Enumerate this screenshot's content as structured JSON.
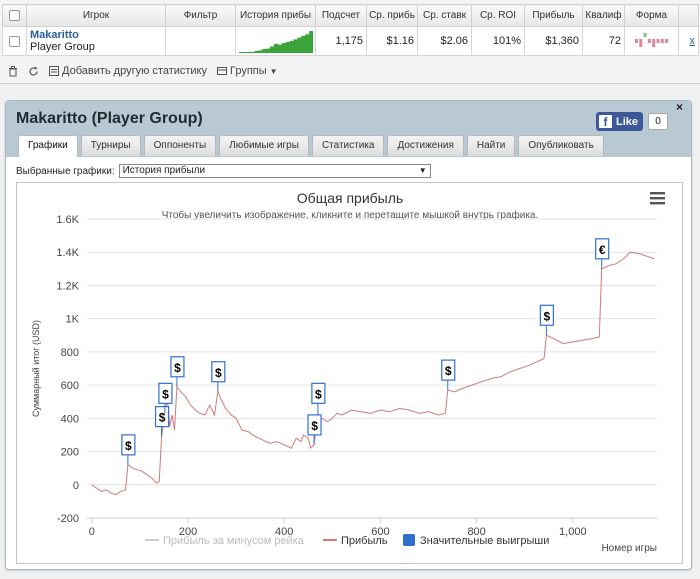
{
  "table": {
    "headers": [
      "Игрок",
      "Фильтр",
      "История прибы",
      "Подсчет",
      "Ср. прибь",
      "Ср. ставк",
      "Ср. ROI",
      "Прибыль",
      "Квалиф",
      "Форма"
    ],
    "row": {
      "player_name": "Makaritto",
      "player_group": "Player Group",
      "filter": "",
      "count": "1,175",
      "avg_profit": "$1.16",
      "avg_stake": "$2.06",
      "avg_roi": "101%",
      "profit": "$1,360",
      "qualification": "72",
      "remove": "x"
    },
    "sparkline_values": [
      0,
      0.02,
      0.05,
      0.04,
      0.1,
      0.12,
      0.18,
      0.2,
      0.3,
      0.42,
      0.38,
      0.45,
      0.5,
      0.55,
      0.62,
      0.7,
      0.78,
      0.85,
      1.0
    ],
    "form_colors": [
      "#d8899a",
      "#d8899a",
      "#7bc77b",
      "#d8899a",
      "#d8899a",
      "#d8899a",
      "#d8899a",
      "#d8899a"
    ]
  },
  "toolbar": {
    "trash_icon": "trash-icon",
    "refresh_icon": "refresh-icon",
    "add_stat_label": "Добавить другую статистику",
    "groups_label": "Группы"
  },
  "group_panel": {
    "title": "Makaritto (Player Group)",
    "fb_like_label": "Like",
    "fb_like_count": "0",
    "close": "×",
    "tabs": [
      "Графики",
      "Турниры",
      "Оппоненты",
      "Любимые игры",
      "Статистика",
      "Достижения",
      "Найти",
      "Опубликовать"
    ],
    "active_tab": "Графики",
    "selected_charts_label": "Выбранные графики:",
    "selected_chart_value": "История прибыли"
  },
  "chart_data": {
    "type": "line",
    "title": "Общая прибыль",
    "subtitle": "Чтобы увеличить изображение, кликните и перетащите мышкой внутрь графика.",
    "ylabel": "Суммарный итог (USD)",
    "xlabel": "Номер игры",
    "ylim": [
      -200,
      1600
    ],
    "xlim": [
      -10,
      1175
    ],
    "y_ticks": [
      "-200",
      "0",
      "200",
      "400",
      "600",
      "800",
      "1K",
      "1.2K",
      "1.4K",
      "1.6K"
    ],
    "y_tick_values": [
      -200,
      0,
      200,
      400,
      600,
      800,
      1000,
      1200,
      1400,
      1600
    ],
    "x_ticks": [
      "0",
      "200",
      "400",
      "600",
      "800",
      "1,000"
    ],
    "x_tick_values": [
      0,
      200,
      400,
      600,
      800,
      1000
    ],
    "legend": [
      "Прибыль за минусом рейка",
      "Прибыль",
      "Значительные выигрыши"
    ],
    "series": [
      {
        "name": "Прибыль",
        "color": "#d07a7a",
        "points": [
          [
            0,
            0
          ],
          [
            10,
            -20
          ],
          [
            20,
            -40
          ],
          [
            30,
            -30
          ],
          [
            40,
            -50
          ],
          [
            50,
            -60
          ],
          [
            60,
            -40
          ],
          [
            70,
            -30
          ],
          [
            75,
            120
          ],
          [
            85,
            100
          ],
          [
            95,
            90
          ],
          [
            105,
            80
          ],
          [
            115,
            60
          ],
          [
            125,
            40
          ],
          [
            135,
            10
          ],
          [
            140,
            20
          ],
          [
            145,
            290
          ],
          [
            148,
            350
          ],
          [
            152,
            430
          ],
          [
            157,
            520
          ],
          [
            162,
            350
          ],
          [
            167,
            420
          ],
          [
            172,
            330
          ],
          [
            177,
            590
          ],
          [
            185,
            560
          ],
          [
            195,
            530
          ],
          [
            205,
            480
          ],
          [
            215,
            450
          ],
          [
            225,
            430
          ],
          [
            235,
            420
          ],
          [
            245,
            480
          ],
          [
            255,
            420
          ],
          [
            262,
            560
          ],
          [
            268,
            520
          ],
          [
            278,
            460
          ],
          [
            290,
            420
          ],
          [
            300,
            400
          ],
          [
            312,
            330
          ],
          [
            325,
            320
          ],
          [
            340,
            290
          ],
          [
            355,
            270
          ],
          [
            370,
            250
          ],
          [
            385,
            260
          ],
          [
            400,
            240
          ],
          [
            415,
            220
          ],
          [
            425,
            280
          ],
          [
            435,
            260
          ],
          [
            440,
            300
          ],
          [
            450,
            280
          ],
          [
            455,
            220
          ],
          [
            462,
            240
          ],
          [
            470,
            430
          ],
          [
            478,
            400
          ],
          [
            490,
            380
          ],
          [
            500,
            400
          ],
          [
            510,
            430
          ],
          [
            520,
            420
          ],
          [
            540,
            450
          ],
          [
            560,
            440
          ],
          [
            580,
            430
          ],
          [
            600,
            450
          ],
          [
            620,
            440
          ],
          [
            640,
            460
          ],
          [
            660,
            450
          ],
          [
            680,
            430
          ],
          [
            700,
            440
          ],
          [
            720,
            420
          ],
          [
            735,
            430
          ],
          [
            740,
            570
          ],
          [
            755,
            560
          ],
          [
            770,
            580
          ],
          [
            790,
            600
          ],
          [
            810,
            620
          ],
          [
            830,
            640
          ],
          [
            850,
            650
          ],
          [
            870,
            680
          ],
          [
            890,
            700
          ],
          [
            910,
            720
          ],
          [
            925,
            740
          ],
          [
            940,
            760
          ],
          [
            945,
            900
          ],
          [
            960,
            880
          ],
          [
            980,
            850
          ],
          [
            1000,
            860
          ],
          [
            1020,
            870
          ],
          [
            1040,
            880
          ],
          [
            1055,
            890
          ],
          [
            1060,
            1300
          ],
          [
            1075,
            1320
          ],
          [
            1090,
            1330
          ],
          [
            1105,
            1360
          ],
          [
            1120,
            1400
          ],
          [
            1140,
            1390
          ],
          [
            1160,
            1370
          ],
          [
            1170,
            1360
          ]
        ]
      }
    ],
    "big_wins": [
      {
        "x": 75,
        "y": 120,
        "label": "$"
      },
      {
        "x": 145,
        "y": 290,
        "label": "$"
      },
      {
        "x": 152,
        "y": 430,
        "label": "$"
      },
      {
        "x": 177,
        "y": 590,
        "label": "$"
      },
      {
        "x": 262,
        "y": 560,
        "label": "$"
      },
      {
        "x": 462,
        "y": 240,
        "label": "$"
      },
      {
        "x": 470,
        "y": 430,
        "label": "$"
      },
      {
        "x": 740,
        "y": 570,
        "label": "$"
      },
      {
        "x": 945,
        "y": 900,
        "label": "$"
      },
      {
        "x": 1060,
        "y": 1300,
        "label": "€"
      }
    ],
    "colors": {
      "profit": "#d07a7a",
      "rake": "#cccccc",
      "wins": "#2f6fd0"
    },
    "grid": true
  }
}
